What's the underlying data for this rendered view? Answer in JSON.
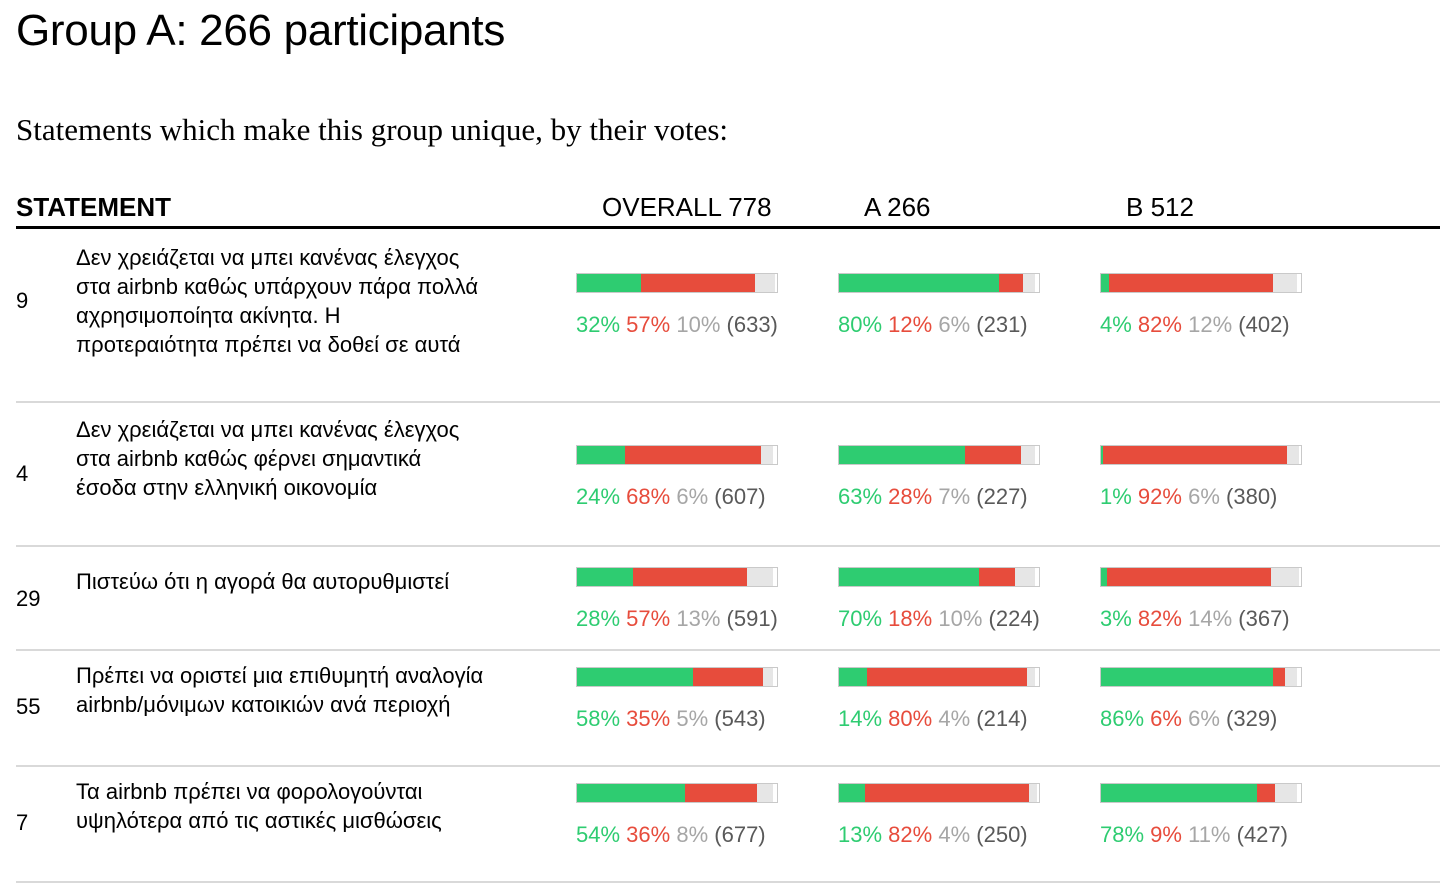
{
  "title": "Group A: 266 participants",
  "subtitle": "Statements which make this group unique, by their votes:",
  "headers": {
    "statement": "STATEMENT",
    "overall": "OVERALL 778",
    "group_a": "A 266",
    "group_b": "B 512"
  },
  "colors": {
    "agree": "#2ecc71",
    "disagree": "#e74c3c",
    "pass": "#e6e6e6"
  },
  "rows": [
    {
      "id": "9",
      "text": "Δεν χρειάζεται να μπει κανένας έλεγχος στα airbnb καθώς υπάρχουν πάρα πολλά αχρησιμοποίητα ακίνητα. Η προτεραιότητα πρέπει να δοθεί σε αυτά",
      "overall": {
        "agree": "32%",
        "disagree": "57%",
        "pass": "10%",
        "count": "(633)",
        "agree_v": 32,
        "disagree_v": 57,
        "pass_v": 10
      },
      "group_a": {
        "agree": "80%",
        "disagree": "12%",
        "pass": "6%",
        "count": "(231)",
        "agree_v": 80,
        "disagree_v": 12,
        "pass_v": 6
      },
      "group_b": {
        "agree": "4%",
        "disagree": "82%",
        "pass": "12%",
        "count": "(402)",
        "agree_v": 4,
        "disagree_v": 82,
        "pass_v": 12
      }
    },
    {
      "id": "4",
      "text": "Δεν χρειάζεται να μπει κανένας έλεγχος στα airbnb καθώς φέρνει σημαντικά έσοδα στην ελληνική οικονομία",
      "overall": {
        "agree": "24%",
        "disagree": "68%",
        "pass": "6%",
        "count": "(607)",
        "agree_v": 24,
        "disagree_v": 68,
        "pass_v": 6
      },
      "group_a": {
        "agree": "63%",
        "disagree": "28%",
        "pass": "7%",
        "count": "(227)",
        "agree_v": 63,
        "disagree_v": 28,
        "pass_v": 7
      },
      "group_b": {
        "agree": "1%",
        "disagree": "92%",
        "pass": "6%",
        "count": "(380)",
        "agree_v": 1,
        "disagree_v": 92,
        "pass_v": 6
      }
    },
    {
      "id": "29",
      "text": "Πιστεύω ότι η αγορά θα αυτορυθμιστεί",
      "overall": {
        "agree": "28%",
        "disagree": "57%",
        "pass": "13%",
        "count": "(591)",
        "agree_v": 28,
        "disagree_v": 57,
        "pass_v": 13
      },
      "group_a": {
        "agree": "70%",
        "disagree": "18%",
        "pass": "10%",
        "count": "(224)",
        "agree_v": 70,
        "disagree_v": 18,
        "pass_v": 10
      },
      "group_b": {
        "agree": "3%",
        "disagree": "82%",
        "pass": "14%",
        "count": "(367)",
        "agree_v": 3,
        "disagree_v": 82,
        "pass_v": 14
      }
    },
    {
      "id": "55",
      "text": "Πρέπει να οριστεί μια επιθυμητή αναλογία airbnb/μόνιμων κατοικιών ανά περιοχή",
      "overall": {
        "agree": "58%",
        "disagree": "35%",
        "pass": "5%",
        "count": "(543)",
        "agree_v": 58,
        "disagree_v": 35,
        "pass_v": 5
      },
      "group_a": {
        "agree": "14%",
        "disagree": "80%",
        "pass": "4%",
        "count": "(214)",
        "agree_v": 14,
        "disagree_v": 80,
        "pass_v": 4
      },
      "group_b": {
        "agree": "86%",
        "disagree": "6%",
        "pass": "6%",
        "count": "(329)",
        "agree_v": 86,
        "disagree_v": 6,
        "pass_v": 6
      }
    },
    {
      "id": "7",
      "text": "Τα airbnb πρέπει να φορολογούνται υψηλότερα από τις αστικές μισθώσεις",
      "overall": {
        "agree": "54%",
        "disagree": "36%",
        "pass": "8%",
        "count": "(677)",
        "agree_v": 54,
        "disagree_v": 36,
        "pass_v": 8
      },
      "group_a": {
        "agree": "13%",
        "disagree": "82%",
        "pass": "4%",
        "count": "(250)",
        "agree_v": 13,
        "disagree_v": 82,
        "pass_v": 4
      },
      "group_b": {
        "agree": "78%",
        "disagree": "9%",
        "pass": "11%",
        "count": "(427)",
        "agree_v": 78,
        "disagree_v": 9,
        "pass_v": 11
      }
    }
  ]
}
